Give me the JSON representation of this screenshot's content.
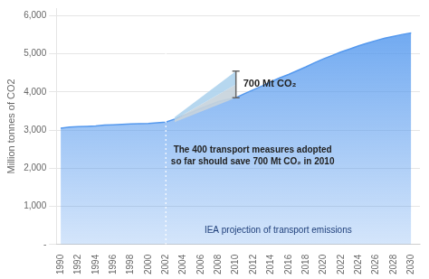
{
  "chart_data": {
    "type": "area",
    "ylabel": "Million tonnes of CO2",
    "x": [
      1990,
      1991,
      1992,
      1993,
      1994,
      1995,
      1996,
      1997,
      1998,
      1999,
      2000,
      2001,
      2002,
      2003,
      2004,
      2005,
      2006,
      2007,
      2008,
      2009,
      2010,
      2011,
      2012,
      2013,
      2014,
      2015,
      2016,
      2017,
      2018,
      2019,
      2020,
      2021,
      2022,
      2023,
      2024,
      2025,
      2026,
      2027,
      2028,
      2029,
      2030
    ],
    "values": [
      3050,
      3080,
      3090,
      3100,
      3110,
      3130,
      3140,
      3150,
      3160,
      3170,
      3175,
      3190,
      3210,
      3290,
      3380,
      3470,
      3570,
      3660,
      3750,
      3800,
      3850,
      3960,
      4060,
      4160,
      4270,
      4370,
      4460,
      4560,
      4660,
      4770,
      4870,
      4960,
      5050,
      5130,
      5210,
      5280,
      5350,
      5410,
      5460,
      5510,
      5550
    ],
    "color": "#5599ee",
    "xlim": [
      1989.5,
      2031.0
    ],
    "xticks": [
      1990,
      1992,
      1994,
      1996,
      1998,
      2000,
      2002,
      2004,
      2006,
      2008,
      2010,
      2012,
      2014,
      2016,
      2018,
      2020,
      2022,
      2024,
      2026,
      2028,
      2030
    ],
    "ylim": [
      0,
      6200
    ],
    "yticks": [
      {
        "value": 0,
        "label": "-"
      },
      {
        "value": 1000,
        "label": "1,000"
      },
      {
        "value": 2000,
        "label": "2,000"
      },
      {
        "value": 3000,
        "label": "3,000"
      },
      {
        "value": 4000,
        "label": "4,000"
      },
      {
        "value": 5000,
        "label": "5,000"
      },
      {
        "value": 6000,
        "label": "6,000"
      }
    ],
    "grid": "y",
    "wedge": {
      "x": [
        2003,
        2010
      ],
      "bottom": [
        3210,
        3850
      ],
      "middle": [
        3275,
        4200
      ],
      "top": [
        3340,
        4550
      ],
      "colors": [
        "#c8d4dc",
        "#b0d4ee"
      ]
    },
    "wedge_label": "700 Mt CO₂",
    "vline": {
      "x": 2002,
      "color": "#ffffff"
    },
    "annotation": [
      "The 400 transport measures adopted",
      "so far should save 700 Mt CO₂ in 2010"
    ],
    "caption": "IEA projection of transport emissions"
  }
}
